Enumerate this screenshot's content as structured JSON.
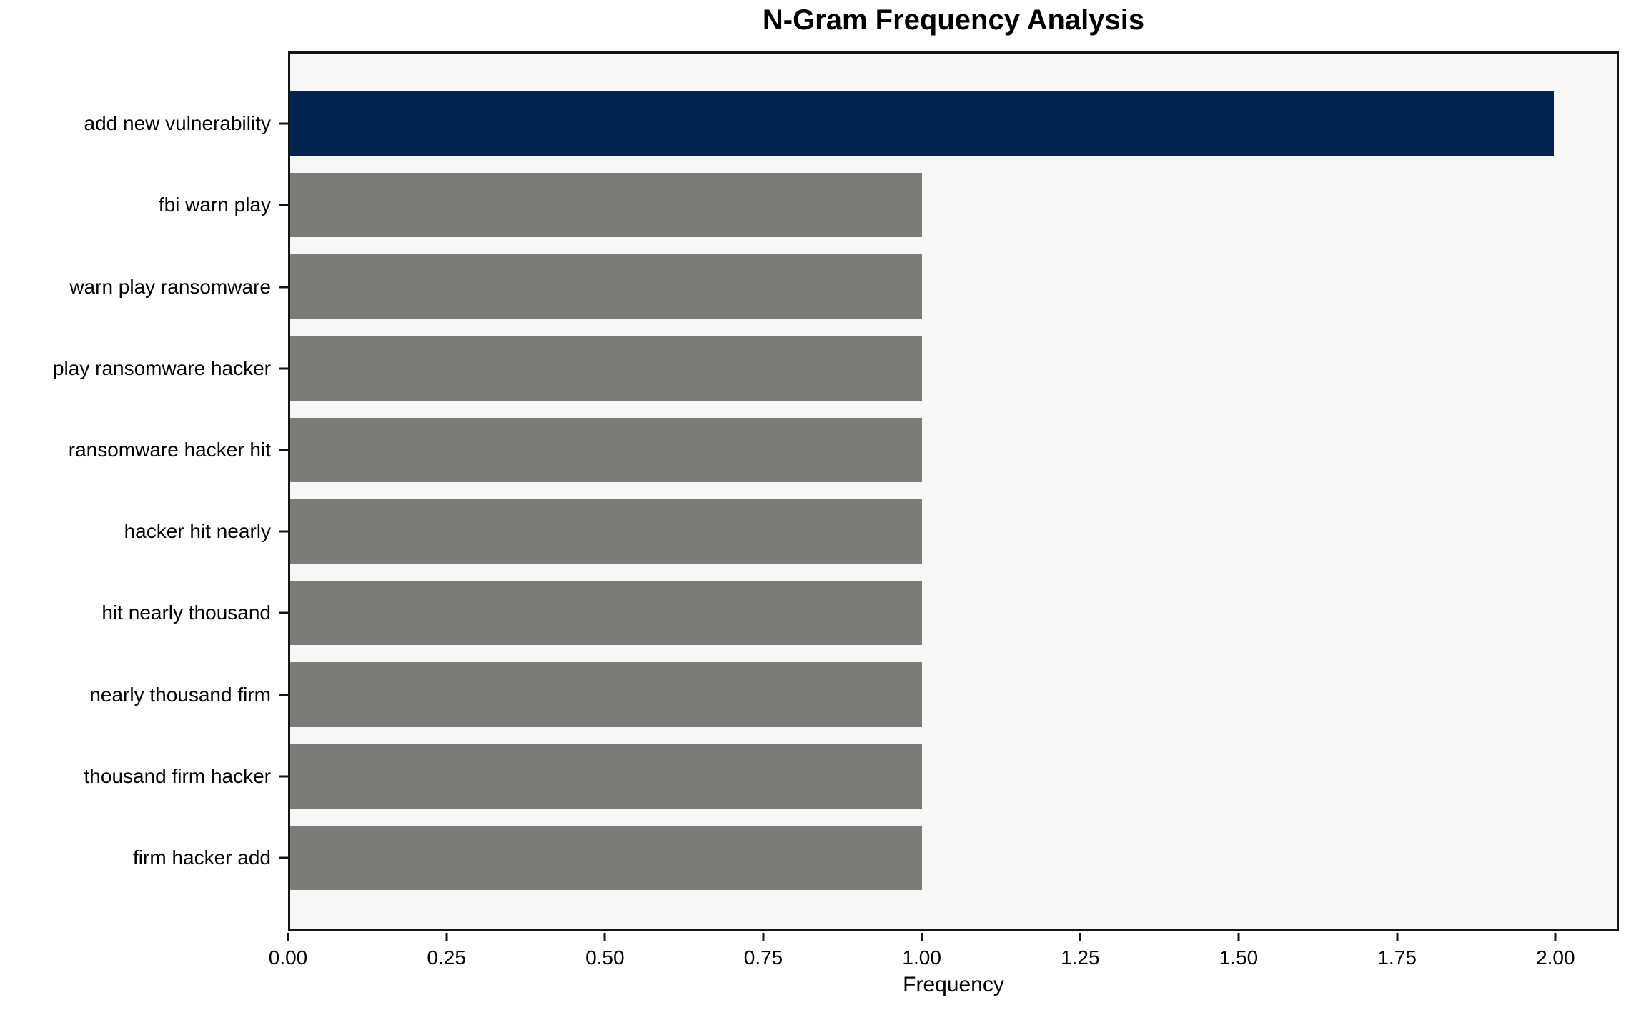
{
  "chart_data": {
    "type": "bar",
    "orientation": "horizontal",
    "title": "N-Gram Frequency Analysis",
    "xlabel": "Frequency",
    "ylabel": "",
    "categories": [
      "add new vulnerability",
      "fbi warn play",
      "warn play ransomware",
      "play ransomware hacker",
      "ransomware hacker hit",
      "hacker hit nearly",
      "hit nearly thousand",
      "nearly thousand firm",
      "thousand firm hacker",
      "firm hacker add"
    ],
    "values": [
      2,
      1,
      1,
      1,
      1,
      1,
      1,
      1,
      1,
      1
    ],
    "xlim": [
      0,
      2.1
    ],
    "x_ticks": [
      0,
      0.25,
      0.5,
      0.75,
      1.0,
      1.25,
      1.5,
      1.75,
      2.0
    ],
    "x_tick_labels": [
      "0.00",
      "0.25",
      "0.50",
      "0.75",
      "1.00",
      "1.25",
      "1.50",
      "1.75",
      "2.00"
    ],
    "highlight_index": 0,
    "colors": {
      "highlight_bar": "#00244e",
      "default_bar": "#7b7b78",
      "plot_background": "#f7f7f5",
      "axis": "#141414",
      "text": "#000000"
    },
    "grid": false,
    "legend": null
  }
}
